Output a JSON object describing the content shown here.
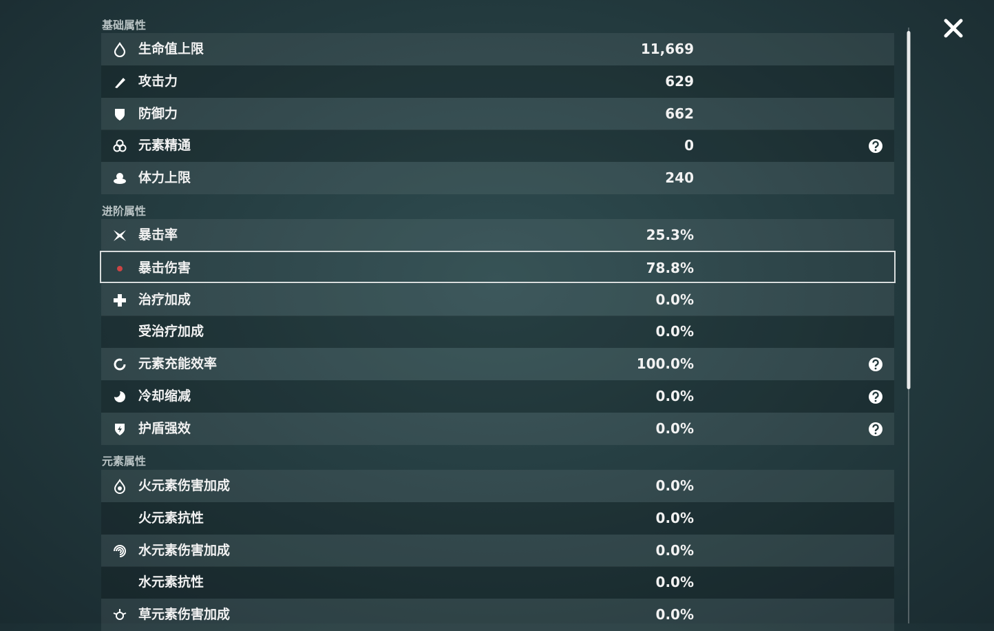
{
  "sections": [
    {
      "title": "基础属性",
      "rows": [
        {
          "label": "生命值上限",
          "value": "11,669"
        },
        {
          "label": "攻击力",
          "value": "629"
        },
        {
          "label": "防御力",
          "value": "662"
        },
        {
          "label": "元素精通",
          "value": "0",
          "help": true
        },
        {
          "label": "体力上限",
          "value": "240"
        }
      ]
    },
    {
      "title": "进阶属性",
      "rows": [
        {
          "label": "暴击率",
          "value": "25.3%"
        },
        {
          "label": "暴击伤害",
          "value": "78.8%",
          "selected": true
        },
        {
          "label": "治疗加成",
          "value": "0.0%"
        },
        {
          "label": "受治疗加成",
          "value": "0.0%"
        },
        {
          "label": "元素充能效率",
          "value": "100.0%",
          "help": true
        },
        {
          "label": "冷却缩减",
          "value": "0.0%",
          "help": true
        },
        {
          "label": "护盾强效",
          "value": "0.0%",
          "help": true
        }
      ]
    },
    {
      "title": "元素属性",
      "rows": [
        {
          "label": "火元素伤害加成",
          "value": "0.0%"
        },
        {
          "label": "火元素抗性",
          "value": "0.0%"
        },
        {
          "label": "水元素伤害加成",
          "value": "0.0%"
        },
        {
          "label": "水元素抗性",
          "value": "0.0%"
        },
        {
          "label": "草元素伤害加成",
          "value": "0.0%"
        }
      ]
    }
  ]
}
